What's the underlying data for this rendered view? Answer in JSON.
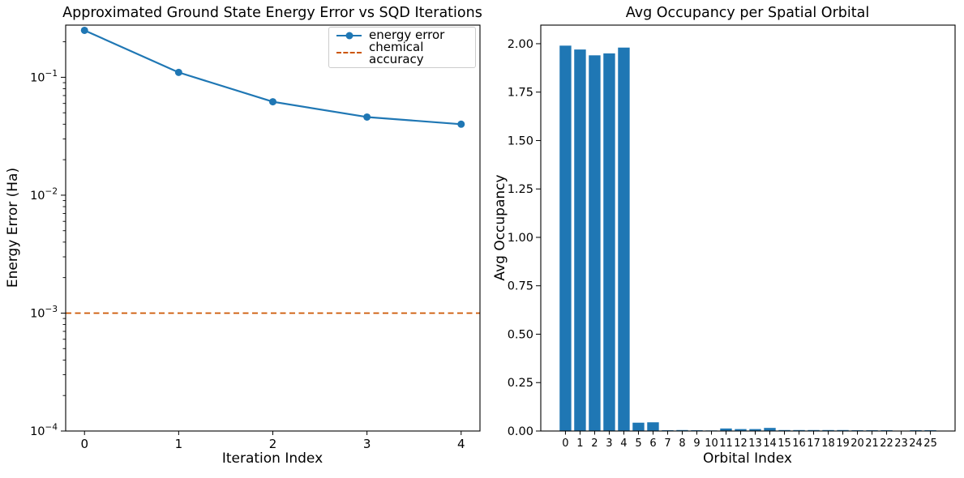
{
  "colors": {
    "series_blue": "#1f77b4",
    "accuracy_orange": "#cc5500",
    "axis_black": "#000000",
    "legend_border": "#cccccc",
    "background": "#ffffff"
  },
  "chart_data": [
    {
      "type": "line",
      "title": "Approximated Ground State Energy Error vs SQD Iterations",
      "xlabel": "Iteration Index",
      "ylabel": "Energy Error (Ha)",
      "yscale": "log",
      "grid": false,
      "legend_position": "upper right",
      "xlim": [
        -0.2,
        4.2
      ],
      "ylim": [
        0.0001,
        0.277
      ],
      "xticks": [
        0,
        1,
        2,
        3,
        4
      ],
      "yticks": [
        0.1,
        0.01,
        0.001,
        0.0001
      ],
      "series": [
        {
          "name": "energy error",
          "style": "solid line with circle markers",
          "color": "#1f77b4",
          "x": [
            0,
            1,
            2,
            3,
            4
          ],
          "y": [
            0.25,
            0.11,
            0.062,
            0.046,
            0.04
          ]
        },
        {
          "name": "chemical accuracy",
          "style": "horizontal dashed line",
          "color": "#cc5500",
          "y": 0.001
        }
      ]
    },
    {
      "type": "bar",
      "title": "Avg Occupancy per Spatial Orbital",
      "xlabel": "Orbital Index",
      "ylabel": "Avg Occupancy",
      "grid": false,
      "bar_color": "#1f77b4",
      "ylim": [
        0,
        2.096
      ],
      "yticks": [
        0,
        0.25,
        0.5,
        0.75,
        1,
        1.25,
        1.5,
        1.75,
        2
      ],
      "categories": [
        0,
        1,
        2,
        3,
        4,
        5,
        6,
        7,
        8,
        9,
        10,
        11,
        12,
        13,
        14,
        15,
        16,
        17,
        18,
        19,
        20,
        21,
        22,
        23,
        24,
        25
      ],
      "values": [
        1.99,
        1.97,
        1.94,
        1.95,
        1.98,
        0.043,
        0.045,
        0.004,
        0.005,
        0.004,
        0.003,
        0.013,
        0.01,
        0.01,
        0.016,
        0.005,
        0.005,
        0.005,
        0.005,
        0.005,
        0.004,
        0.004,
        0.004,
        0,
        0.004,
        0.004
      ]
    }
  ]
}
